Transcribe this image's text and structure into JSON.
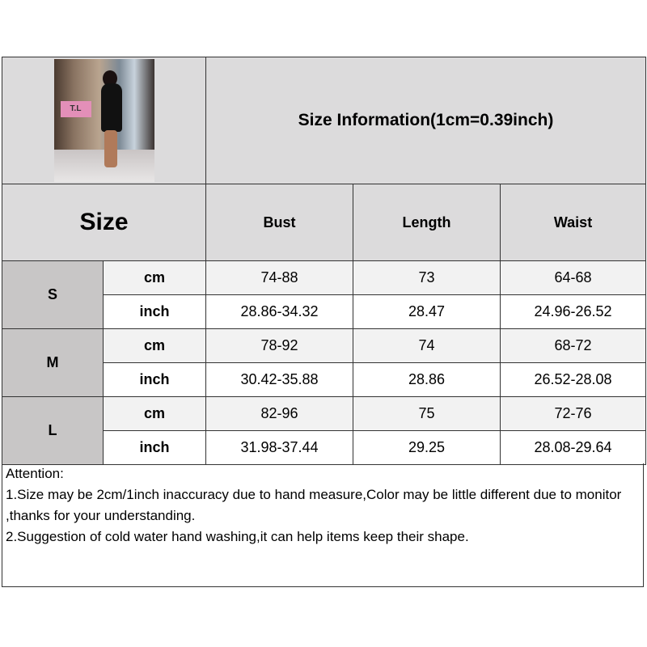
{
  "title": "Size Information(1cm=0.39inch)",
  "size_header": "Size",
  "columns": [
    "Bust",
    "Length",
    "Waist"
  ],
  "photo_sign_text": "T.L",
  "rows": [
    {
      "size": "S",
      "cm": {
        "unit": "cm",
        "values": [
          "74-88",
          "73",
          "64-68"
        ]
      },
      "inch": {
        "unit": "inch",
        "values": [
          "28.86-34.32",
          "28.47",
          "24.96-26.52"
        ]
      }
    },
    {
      "size": "M",
      "cm": {
        "unit": "cm",
        "values": [
          "78-92",
          "74",
          "68-72"
        ]
      },
      "inch": {
        "unit": "inch",
        "values": [
          "30.42-35.88",
          "28.86",
          "26.52-28.08"
        ]
      }
    },
    {
      "size": "L",
      "cm": {
        "unit": "cm",
        "values": [
          "82-96",
          "75",
          "72-76"
        ]
      },
      "inch": {
        "unit": "inch",
        "values": [
          "31.98-37.44",
          "29.25",
          "28.08-29.64"
        ]
      }
    }
  ],
  "attention": {
    "heading": "Attention:",
    "lines": [
      "1.Size may be 2cm/1inch inaccuracy due to hand measure,Color may be little different due to monitor ,thanks for your understanding.",
      "2.Suggestion of cold water hand washing,it can help items keep their shape."
    ]
  },
  "colors": {
    "header_bg": "#dcdbdc",
    "size_bg": "#c8c6c6",
    "cm_row_bg": "#f2f2f2"
  }
}
